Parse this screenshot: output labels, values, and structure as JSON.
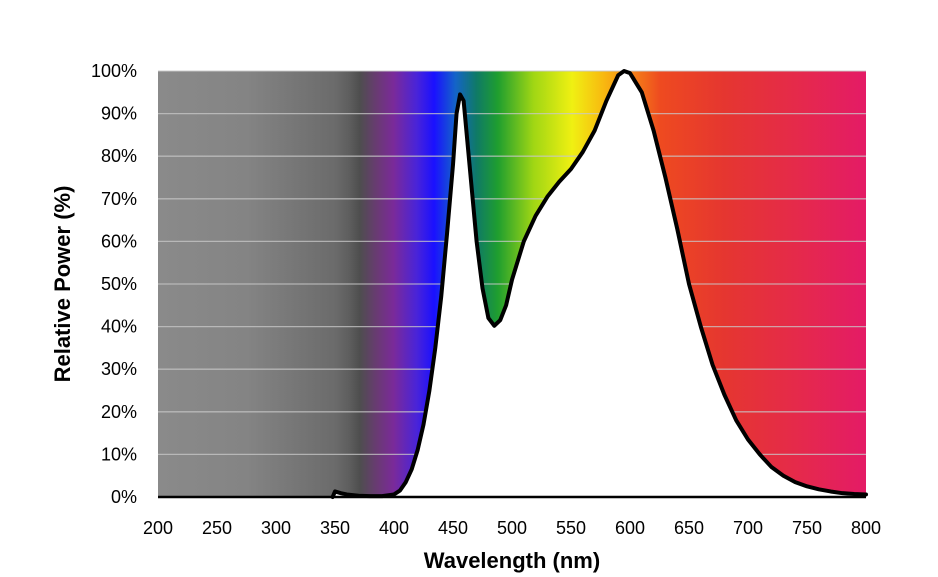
{
  "chart_data": {
    "type": "area",
    "title": "",
    "xlabel": "Wavelength (nm)",
    "ylabel": "Relative Power (%)",
    "xlim": [
      200,
      800
    ],
    "ylim": [
      0,
      100
    ],
    "xticks": [
      200,
      250,
      300,
      350,
      400,
      450,
      500,
      550,
      600,
      650,
      700,
      750,
      800
    ],
    "xtick_labels": [
      "200",
      "250",
      "300",
      "350",
      "400",
      "450",
      "500",
      "550",
      "600",
      "650",
      "700",
      "750",
      "800"
    ],
    "yticks": [
      0,
      10,
      20,
      30,
      40,
      50,
      60,
      70,
      80,
      90,
      100
    ],
    "ytick_labels": [
      "0%",
      "10%",
      "20%",
      "30%",
      "40%",
      "50%",
      "60%",
      "70%",
      "80%",
      "90%",
      "100%"
    ],
    "grid": true,
    "legend": "none",
    "background": "visible light spectrum gradient (grey in UV region, violet to red across 380-800 nm)",
    "series": [
      {
        "color": "#000000",
        "points": [
          [
            348,
            0
          ],
          [
            350,
            1.3
          ],
          [
            355,
            0.9
          ],
          [
            360,
            0.6
          ],
          [
            370,
            0.3
          ],
          [
            380,
            0.2
          ],
          [
            390,
            0.2
          ],
          [
            400,
            0.6
          ],
          [
            405,
            1.5
          ],
          [
            410,
            3.5
          ],
          [
            415,
            6.5
          ],
          [
            420,
            11
          ],
          [
            425,
            17
          ],
          [
            430,
            25
          ],
          [
            435,
            35
          ],
          [
            440,
            47
          ],
          [
            445,
            62
          ],
          [
            450,
            78
          ],
          [
            453,
            90
          ],
          [
            456,
            94.5
          ],
          [
            459,
            93
          ],
          [
            462,
            84
          ],
          [
            466,
            72
          ],
          [
            470,
            60
          ],
          [
            475,
            49
          ],
          [
            480,
            42
          ],
          [
            485,
            40.2
          ],
          [
            490,
            41.5
          ],
          [
            495,
            45
          ],
          [
            500,
            51
          ],
          [
            510,
            60
          ],
          [
            520,
            66
          ],
          [
            530,
            70.5
          ],
          [
            540,
            74
          ],
          [
            550,
            77
          ],
          [
            560,
            81
          ],
          [
            570,
            86
          ],
          [
            580,
            93
          ],
          [
            590,
            99
          ],
          [
            595,
            100
          ],
          [
            600,
            99.5
          ],
          [
            610,
            95
          ],
          [
            620,
            86
          ],
          [
            630,
            75
          ],
          [
            640,
            63
          ],
          [
            650,
            50
          ],
          [
            660,
            40
          ],
          [
            670,
            31
          ],
          [
            680,
            24
          ],
          [
            690,
            18
          ],
          [
            700,
            13.5
          ],
          [
            710,
            10
          ],
          [
            720,
            7
          ],
          [
            730,
            5
          ],
          [
            740,
            3.5
          ],
          [
            750,
            2.5
          ],
          [
            760,
            1.8
          ],
          [
            770,
            1.3
          ],
          [
            780,
            0.9
          ],
          [
            790,
            0.7
          ],
          [
            800,
            0.6
          ]
        ]
      }
    ]
  },
  "colors": {
    "curve": "#000000",
    "fill": "#ffffff",
    "grid": "#c8c8c8"
  }
}
